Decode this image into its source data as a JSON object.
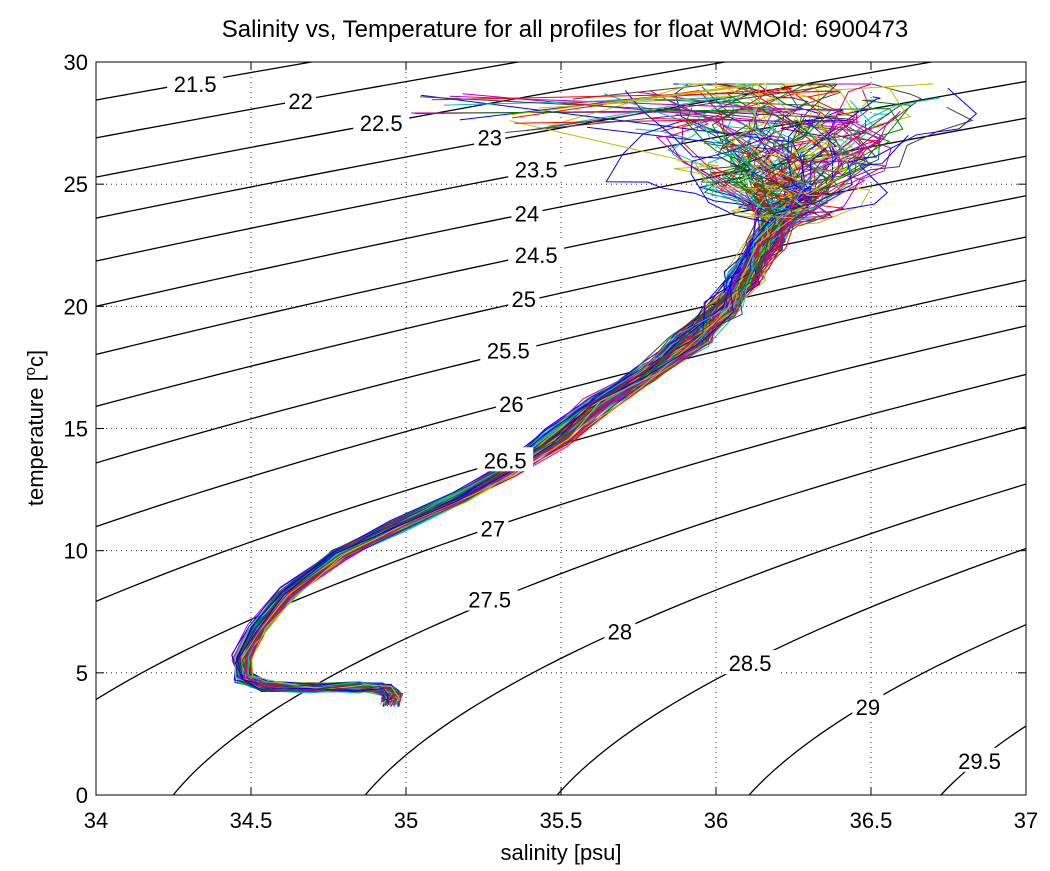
{
  "chart_data": {
    "type": "line",
    "title": "Salinity vs, Temperature for all profiles for float WMOId: 6900473",
    "xlabel": "salinity [psu]",
    "ylabel_main": "temperature [",
    "ylabel_sup": "o",
    "ylabel_tail": "c]",
    "xlim": [
      34,
      37
    ],
    "ylim": [
      0,
      30
    ],
    "xticks": [
      34,
      34.5,
      35,
      35.5,
      36,
      36.5,
      37
    ],
    "xtick_labels": [
      "34",
      "34.5",
      "35",
      "35.5",
      "36",
      "36.5",
      "37"
    ],
    "yticks": [
      0,
      5,
      10,
      15,
      20,
      25,
      30
    ],
    "ytick_labels": [
      "0",
      "5",
      "10",
      "15",
      "20",
      "25",
      "30"
    ],
    "grid": true,
    "sigma_contours": [
      {
        "label": "21.5",
        "value": 21.5,
        "label_x": 34.32,
        "label_y": 29.1
      },
      {
        "label": "22",
        "value": 22.0,
        "label_x": 34.66,
        "label_y": 28.4
      },
      {
        "label": "22.5",
        "value": 22.5,
        "label_x": 34.92,
        "label_y": 27.5
      },
      {
        "label": "23",
        "value": 23.0,
        "label_x": 35.27,
        "label_y": 26.9
      },
      {
        "label": "23.5",
        "value": 23.5,
        "label_x": 35.42,
        "label_y": 25.6
      },
      {
        "label": "24",
        "value": 24.0,
        "label_x": 35.39,
        "label_y": 23.8
      },
      {
        "label": "24.5",
        "value": 24.5,
        "label_x": 35.42,
        "label_y": 22.1
      },
      {
        "label": "25",
        "value": 25.0,
        "label_x": 35.38,
        "label_y": 20.3
      },
      {
        "label": "25.5",
        "value": 25.5,
        "label_x": 35.33,
        "label_y": 18.2
      },
      {
        "label": "26",
        "value": 26.0,
        "label_x": 35.34,
        "label_y": 16.0
      },
      {
        "label": "26.5",
        "value": 26.5,
        "label_x": 35.32,
        "label_y": 13.7
      },
      {
        "label": "27",
        "value": 27.0,
        "label_x": 35.28,
        "label_y": 10.9
      },
      {
        "label": "27.5",
        "value": 27.5,
        "label_x": 35.27,
        "label_y": 8.0
      },
      {
        "label": "28",
        "value": 28.0,
        "label_x": 35.69,
        "label_y": 6.7
      },
      {
        "label": "28.5",
        "value": 28.5,
        "label_x": 36.11,
        "label_y": 5.4
      },
      {
        "label": "29",
        "value": 29.0,
        "label_x": 36.49,
        "label_y": 3.6
      },
      {
        "label": "29.5",
        "value": 29.5,
        "label_x": 36.85,
        "label_y": 1.4
      }
    ],
    "profile_colors": [
      "#0000ff",
      "#008000",
      "#ff0000",
      "#00bfbf",
      "#bf00bf",
      "#bfbf00",
      "#404040"
    ],
    "profile_count": 120,
    "profile_template": {
      "salinity": [
        34.95,
        34.96,
        34.93,
        34.85,
        34.7,
        34.55,
        34.48,
        34.47,
        34.52,
        34.62,
        34.78,
        34.98,
        35.18,
        35.33,
        35.48,
        35.62,
        35.78,
        35.92,
        36.02,
        36.1,
        36.16,
        36.2
      ],
      "temperature": [
        3.8,
        4.1,
        4.35,
        4.4,
        4.4,
        4.45,
        4.8,
        5.6,
        6.8,
        8.3,
        9.8,
        11.0,
        12.2,
        13.3,
        14.6,
        16.0,
        17.3,
        18.6,
        19.9,
        21.2,
        22.5,
        23.6
      ]
    }
  }
}
